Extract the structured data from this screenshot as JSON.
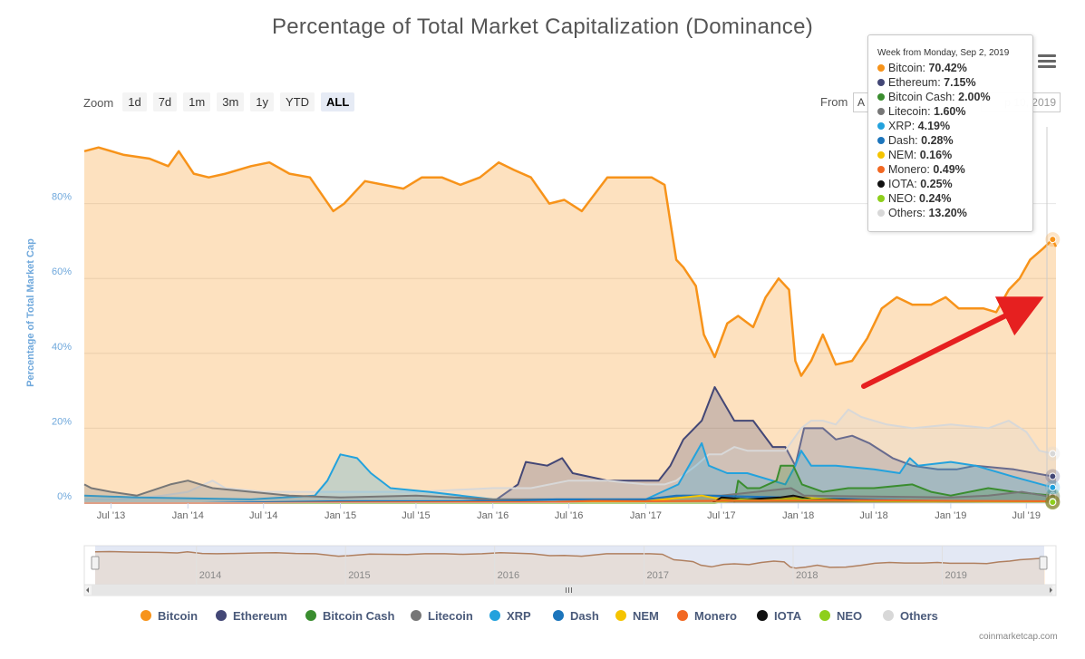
{
  "title": "Percentage of Total Market Capitalization (Dominance)",
  "zoom": {
    "label": "Zoom",
    "buttons": [
      "1d",
      "7d",
      "1m",
      "3m",
      "1y",
      "YTD",
      "ALL"
    ],
    "active": "ALL"
  },
  "range": {
    "from_label": "From",
    "from_value": "A",
    "to_value": "p 10, 2019"
  },
  "tooltip": {
    "header": "Week from Monday, Sep 2, 2019",
    "rows": [
      {
        "name": "Bitcoin",
        "value": "70.42%",
        "color": "#f7931a"
      },
      {
        "name": "Ethereum",
        "value": "7.15%",
        "color": "#434776"
      },
      {
        "name": "Bitcoin Cash",
        "value": "2.00%",
        "color": "#3a8d2f"
      },
      {
        "name": "Litecoin",
        "value": "1.60%",
        "color": "#777777"
      },
      {
        "name": "XRP",
        "value": "4.19%",
        "color": "#23a2dd"
      },
      {
        "name": "Dash",
        "value": "0.28%",
        "color": "#1c75bc"
      },
      {
        "name": "NEM",
        "value": "0.16%",
        "color": "#f5c400"
      },
      {
        "name": "Monero",
        "value": "0.49%",
        "color": "#f26822"
      },
      {
        "name": "IOTA",
        "value": "0.25%",
        "color": "#111111"
      },
      {
        "name": "NEO",
        "value": "0.24%",
        "color": "#8ecf1c"
      },
      {
        "name": "Others",
        "value": "13.20%",
        "color": "#d8d8d8"
      }
    ]
  },
  "legend": [
    "Bitcoin",
    "Ethereum",
    "Bitcoin Cash",
    "Litecoin",
    "XRP",
    "Dash",
    "NEM",
    "Monero",
    "IOTA",
    "NEO",
    "Others"
  ],
  "credit": "coinmarketcap.com",
  "navigator": {
    "labels": [
      "2014",
      "2015",
      "2016",
      "2017",
      "2018",
      "2019"
    ]
  },
  "chart_data": {
    "type": "area",
    "ylabel": "Percentage of Total Market Cap",
    "ylim": [
      0,
      100
    ],
    "yticks": [
      0,
      20,
      40,
      60,
      80
    ],
    "ytick_labels": [
      "0%",
      "20%",
      "40%",
      "60%",
      "80%"
    ],
    "xticks": [
      "2013-07-01",
      "2014-01-01",
      "2014-07-01",
      "2015-01-01",
      "2015-07-01",
      "2016-01-01",
      "2016-07-01",
      "2017-01-01",
      "2017-07-01",
      "2018-01-01",
      "2018-07-01",
      "2019-01-01",
      "2019-07-01"
    ],
    "xtick_labels": [
      "Jul '13",
      "Jan '14",
      "Jul '14",
      "Jan '15",
      "Jul '15",
      "Jan '16",
      "Jul '16",
      "Jan '17",
      "Jul '17",
      "Jan '18",
      "Jul '18",
      "Jan '19",
      "Jul '19"
    ],
    "grid": true,
    "legend_position": "bottom",
    "series": [
      {
        "name": "Bitcoin",
        "color": "#f7931a",
        "x": [
          "2013-04-28",
          "2013-06-01",
          "2013-08-01",
          "2013-10-01",
          "2013-11-15",
          "2013-12-10",
          "2014-01-15",
          "2014-02-20",
          "2014-04-01",
          "2014-06-01",
          "2014-07-15",
          "2014-09-01",
          "2014-10-20",
          "2014-12-15",
          "2015-01-10",
          "2015-03-01",
          "2015-04-15",
          "2015-06-01",
          "2015-07-15",
          "2015-09-01",
          "2015-10-15",
          "2015-12-01",
          "2016-01-15",
          "2016-02-20",
          "2016-04-01",
          "2016-05-15",
          "2016-06-20",
          "2016-08-01",
          "2016-10-01",
          "2016-12-01",
          "2017-01-15",
          "2017-02-15",
          "2017-03-01",
          "2017-03-15",
          "2017-04-01",
          "2017-05-01",
          "2017-05-20",
          "2017-06-15",
          "2017-07-15",
          "2017-08-10",
          "2017-09-15",
          "2017-10-15",
          "2017-11-15",
          "2017-12-10",
          "2017-12-25",
          "2018-01-08",
          "2018-02-01",
          "2018-03-01",
          "2018-04-01",
          "2018-05-10",
          "2018-06-15",
          "2018-07-20",
          "2018-08-25",
          "2018-10-01",
          "2018-11-15",
          "2018-12-20",
          "2019-01-20",
          "2019-02-20",
          "2019-03-20",
          "2019-04-20",
          "2019-05-20",
          "2019-06-15",
          "2019-07-10",
          "2019-08-10",
          "2019-09-02",
          "2019-09-10"
        ],
        "values": [
          94,
          95,
          93,
          92,
          90,
          94,
          88,
          87,
          88,
          90,
          91,
          88,
          87,
          78,
          80,
          86,
          85,
          84,
          87,
          87,
          85,
          87,
          91,
          89,
          87,
          80,
          81,
          78,
          87,
          87,
          87,
          85,
          75,
          65,
          63,
          58,
          45,
          39,
          48,
          50,
          47,
          55,
          60,
          57,
          38,
          34,
          38,
          45,
          37,
          38,
          44,
          52,
          55,
          53,
          53,
          55,
          52,
          52,
          52,
          51,
          57,
          60,
          65,
          68,
          70.42,
          68.5
        ]
      },
      {
        "name": "Ethereum",
        "color": "#434776",
        "x": [
          "2013-04-28",
          "2015-08-01",
          "2016-01-10",
          "2016-03-01",
          "2016-03-20",
          "2016-05-10",
          "2016-06-15",
          "2016-07-10",
          "2016-10-01",
          "2016-12-15",
          "2017-02-01",
          "2017-03-01",
          "2017-04-01",
          "2017-05-15",
          "2017-06-15",
          "2017-08-01",
          "2017-09-15",
          "2017-11-01",
          "2017-12-01",
          "2017-12-25",
          "2018-01-15",
          "2018-03-01",
          "2018-04-01",
          "2018-05-10",
          "2018-06-20",
          "2018-08-15",
          "2018-10-01",
          "2018-12-01",
          "2019-01-15",
          "2019-03-01",
          "2019-06-01",
          "2019-09-02",
          "2019-09-10"
        ],
        "values": [
          0,
          0,
          1,
          5,
          11,
          10,
          12,
          8,
          6,
          6,
          6,
          10,
          17,
          22,
          31,
          22,
          22,
          15,
          15,
          10,
          20,
          20,
          17,
          18,
          16,
          12,
          10,
          9,
          9,
          10,
          9,
          7.15,
          7.2
        ]
      },
      {
        "name": "Bitcoin Cash",
        "color": "#3a8d2f",
        "x": [
          "2017-08-01",
          "2017-08-10",
          "2017-09-01",
          "2017-10-01",
          "2017-11-10",
          "2017-11-20",
          "2017-12-20",
          "2018-01-10",
          "2018-03-01",
          "2018-05-01",
          "2018-07-01",
          "2018-10-01",
          "2018-11-15",
          "2019-01-01",
          "2019-04-01",
          "2019-06-01",
          "2019-09-02",
          "2019-09-10"
        ],
        "values": [
          0,
          6,
          4,
          4,
          6,
          10,
          10,
          5,
          3,
          4,
          4,
          5,
          3,
          2,
          4,
          3,
          2.0,
          2.0
        ]
      },
      {
        "name": "Litecoin",
        "color": "#777777",
        "x": [
          "2013-04-28",
          "2013-05-15",
          "2013-07-01",
          "2013-09-01",
          "2013-11-20",
          "2014-01-01",
          "2014-03-01",
          "2014-06-01",
          "2014-09-01",
          "2015-01-01",
          "2015-07-01",
          "2016-01-01",
          "2016-07-01",
          "2017-01-01",
          "2017-04-01",
          "2017-07-01",
          "2017-12-15",
          "2018-01-15",
          "2018-06-01",
          "2019-01-01",
          "2019-04-01",
          "2019-06-20",
          "2019-09-02",
          "2019-09-10"
        ],
        "values": [
          5,
          4,
          3,
          2,
          5,
          6,
          4,
          3,
          2,
          1.5,
          2,
          1,
          1,
          1,
          2,
          2,
          4,
          2,
          1.8,
          1.5,
          2,
          3,
          1.6,
          1.6
        ]
      },
      {
        "name": "XRP",
        "color": "#23a2dd",
        "x": [
          "2013-04-28",
          "2013-09-01",
          "2014-06-01",
          "2014-11-01",
          "2014-12-01",
          "2015-01-01",
          "2015-02-10",
          "2015-03-15",
          "2015-05-01",
          "2015-08-01",
          "2016-01-01",
          "2016-06-01",
          "2017-01-01",
          "2017-03-20",
          "2017-05-15",
          "2017-06-01",
          "2017-07-15",
          "2017-09-01",
          "2017-12-01",
          "2017-12-25",
          "2018-01-08",
          "2018-02-01",
          "2018-04-01",
          "2018-07-01",
          "2018-09-01",
          "2018-09-25",
          "2018-10-15",
          "2019-01-01",
          "2019-03-01",
          "2019-06-01",
          "2019-09-02",
          "2019-09-10"
        ],
        "values": [
          2,
          1.5,
          1,
          2,
          6,
          13,
          12,
          8,
          4,
          3,
          1,
          1,
          1,
          5,
          16,
          10,
          8,
          8,
          5,
          10,
          14,
          10,
          10,
          9,
          8,
          12,
          10,
          11,
          10,
          7,
          4.19,
          4.2
        ]
      },
      {
        "name": "Dash",
        "color": "#1c75bc",
        "x": [
          "2013-04-28",
          "2014-02-01",
          "2015-01-01",
          "2016-01-01",
          "2016-06-01",
          "2017-01-01",
          "2017-03-15",
          "2017-06-01",
          "2017-12-01",
          "2018-06-01",
          "2019-01-01",
          "2019-09-02",
          "2019-09-10"
        ],
        "values": [
          0,
          0,
          0.5,
          0.5,
          1,
          1,
          2,
          2,
          1.5,
          1,
          0.5,
          0.28,
          0.28
        ]
      },
      {
        "name": "NEM",
        "color": "#f5c400",
        "x": [
          "2013-04-28",
          "2015-04-01",
          "2016-06-01",
          "2017-01-01",
          "2017-05-15",
          "2017-07-01",
          "2017-10-01",
          "2018-01-08",
          "2018-06-01",
          "2019-01-01",
          "2019-09-02",
          "2019-09-10"
        ],
        "values": [
          0,
          0,
          0.2,
          0.5,
          2,
          1,
          0.8,
          1.5,
          0.5,
          0.3,
          0.16,
          0.16
        ]
      },
      {
        "name": "Monero",
        "color": "#f26822",
        "x": [
          "2013-04-28",
          "2014-06-01",
          "2015-01-01",
          "2016-06-01",
          "2016-09-01",
          "2017-01-01",
          "2017-06-01",
          "2018-01-01",
          "2018-06-01",
          "2019-01-01",
          "2019-09-02",
          "2019-09-10"
        ],
        "values": [
          0,
          0,
          0.2,
          0.3,
          0.6,
          0.5,
          0.6,
          0.7,
          0.8,
          0.6,
          0.49,
          0.49
        ]
      },
      {
        "name": "IOTA",
        "color": "#111111",
        "x": [
          "2013-04-28",
          "2017-06-10",
          "2017-07-01",
          "2017-09-01",
          "2017-11-20",
          "2017-12-20",
          "2018-02-01",
          "2018-06-01",
          "2019-01-01",
          "2019-09-02",
          "2019-09-10"
        ],
        "values": [
          0,
          0,
          1.5,
          1,
          1.5,
          2,
          1,
          0.8,
          0.4,
          0.25,
          0.25
        ]
      },
      {
        "name": "NEO",
        "color": "#8ecf1c",
        "x": [
          "2013-04-28",
          "2017-06-15",
          "2017-08-15",
          "2017-10-01",
          "2018-01-15",
          "2018-06-01",
          "2019-01-01",
          "2019-09-02",
          "2019-09-10"
        ],
        "values": [
          0,
          0,
          1,
          0.7,
          1,
          0.6,
          0.4,
          0.24,
          0.24
        ]
      },
      {
        "name": "Others",
        "color": "#d8d8d8",
        "x": [
          "2013-04-28",
          "2013-08-01",
          "2013-11-01",
          "2014-01-01",
          "2014-03-01",
          "2014-04-01",
          "2014-07-01",
          "2014-10-01",
          "2015-01-01",
          "2015-07-01",
          "2016-01-01",
          "2016-04-01",
          "2016-07-01",
          "2016-10-01",
          "2017-01-01",
          "2017-02-15",
          "2017-03-15",
          "2017-05-01",
          "2017-06-01",
          "2017-07-01",
          "2017-08-01",
          "2017-09-01",
          "2017-11-01",
          "2017-12-01",
          "2018-01-08",
          "2018-02-01",
          "2018-03-01",
          "2018-04-01",
          "2018-05-01",
          "2018-06-01",
          "2018-08-01",
          "2018-10-01",
          "2019-01-01",
          "2019-04-01",
          "2019-05-20",
          "2019-07-01",
          "2019-08-01",
          "2019-09-02",
          "2019-09-10"
        ],
        "values": [
          1,
          1,
          2,
          3,
          6,
          4,
          3,
          3,
          3,
          3,
          4,
          4,
          6,
          6,
          5,
          5,
          6,
          10,
          13,
          13,
          15,
          14,
          14,
          14,
          20,
          22,
          22,
          21,
          25,
          23,
          21,
          20,
          21,
          20,
          22,
          19,
          14,
          13.2,
          13.2
        ]
      }
    ],
    "hover_date": "2019-09-02"
  }
}
